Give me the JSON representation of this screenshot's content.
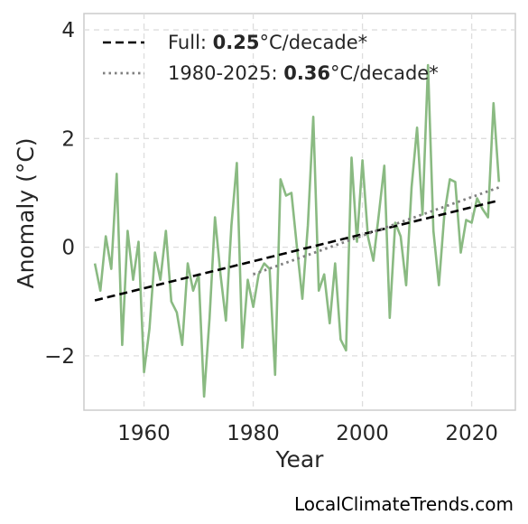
{
  "chart_data": {
    "type": "line",
    "xlabel": "Year",
    "ylabel": "Anomaly (°C)",
    "xlim": [
      1949,
      2028
    ],
    "ylim": [
      -3.0,
      4.3
    ],
    "xticks": [
      1960,
      1980,
      2000,
      2020
    ],
    "yticks": [
      -2,
      0,
      2,
      4
    ],
    "ytick_labels": [
      "−2",
      "0",
      "2",
      "4"
    ],
    "grid": true,
    "legend_position": "top-left",
    "series": [
      {
        "color": "#8aba82",
        "x": [
          1951,
          1952,
          1953,
          1954,
          1955,
          1956,
          1957,
          1958,
          1959,
          1960,
          1961,
          1962,
          1963,
          1964,
          1965,
          1966,
          1967,
          1968,
          1969,
          1970,
          1971,
          1972,
          1973,
          1974,
          1975,
          1976,
          1977,
          1978,
          1979,
          1980,
          1981,
          1982,
          1983,
          1984,
          1985,
          1986,
          1987,
          1988,
          1989,
          1990,
          1991,
          1992,
          1993,
          1994,
          1995,
          1996,
          1997,
          1998,
          1999,
          2000,
          2001,
          2002,
          2003,
          2004,
          2005,
          2006,
          2007,
          2008,
          2009,
          2010,
          2011,
          2012,
          2013,
          2014,
          2015,
          2016,
          2017,
          2018,
          2019,
          2020,
          2021,
          2022,
          2023,
          2024,
          2025
        ],
        "y": [
          -0.3,
          -0.8,
          0.2,
          -0.4,
          1.35,
          -1.8,
          0.3,
          -0.6,
          0.1,
          -2.3,
          -1.5,
          -0.1,
          -0.6,
          0.3,
          -1.0,
          -1.2,
          -1.8,
          -0.3,
          -0.8,
          -0.5,
          -2.75,
          -1.3,
          0.55,
          -0.5,
          -1.35,
          0.4,
          1.55,
          -1.85,
          -0.6,
          -1.1,
          -0.5,
          -0.3,
          -0.4,
          -2.35,
          1.25,
          0.95,
          1.0,
          0.0,
          -0.95,
          0.4,
          2.4,
          -0.8,
          -0.5,
          -1.4,
          -0.3,
          -1.7,
          -1.9,
          1.65,
          0.1,
          1.6,
          0.2,
          -0.25,
          0.6,
          1.5,
          -1.3,
          0.45,
          0.2,
          -0.7,
          1.1,
          2.2,
          0.6,
          3.35,
          0.3,
          -0.7,
          0.6,
          1.25,
          1.2,
          -0.1,
          0.5,
          0.45,
          0.9,
          0.7,
          0.55,
          2.65,
          1.2
        ]
      }
    ],
    "trend_lines": [
      {
        "legend_label": "Full: ",
        "legend_value": "0.25",
        "legend_unit": "°C/decade*",
        "style": "dashed",
        "color": "#000000",
        "x": [
          1951,
          2025
        ],
        "y": [
          -0.98,
          0.86
        ]
      },
      {
        "legend_label": "1980-2025: ",
        "legend_value": "0.36",
        "legend_unit": "°C/decade*",
        "style": "dotted",
        "color": "#808080",
        "x": [
          1980,
          2025
        ],
        "y": [
          -0.5,
          1.1
        ]
      }
    ],
    "credit": "LocalClimateTrends.com"
  }
}
